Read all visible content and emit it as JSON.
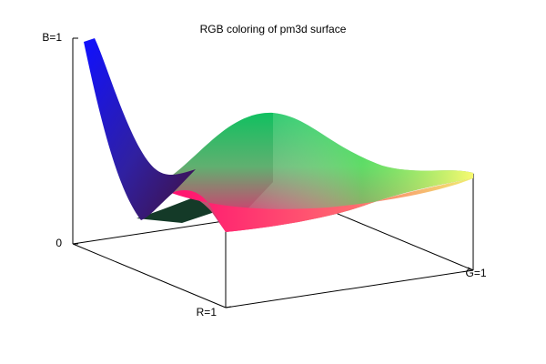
{
  "chart_data": {
    "type": "surface3d",
    "title": "RGB coloring of pm3d surface",
    "xlim": [
      0,
      1
    ],
    "xticks": [
      {
        "value": 1,
        "label": "R=1"
      }
    ],
    "ylim": [
      0,
      1
    ],
    "yticks": [
      {
        "value": 1,
        "label": "G=1"
      }
    ],
    "zlim": [
      0,
      1
    ],
    "zticks": [
      0,
      {
        "value": 1,
        "label": "B=1"
      }
    ]
  }
}
